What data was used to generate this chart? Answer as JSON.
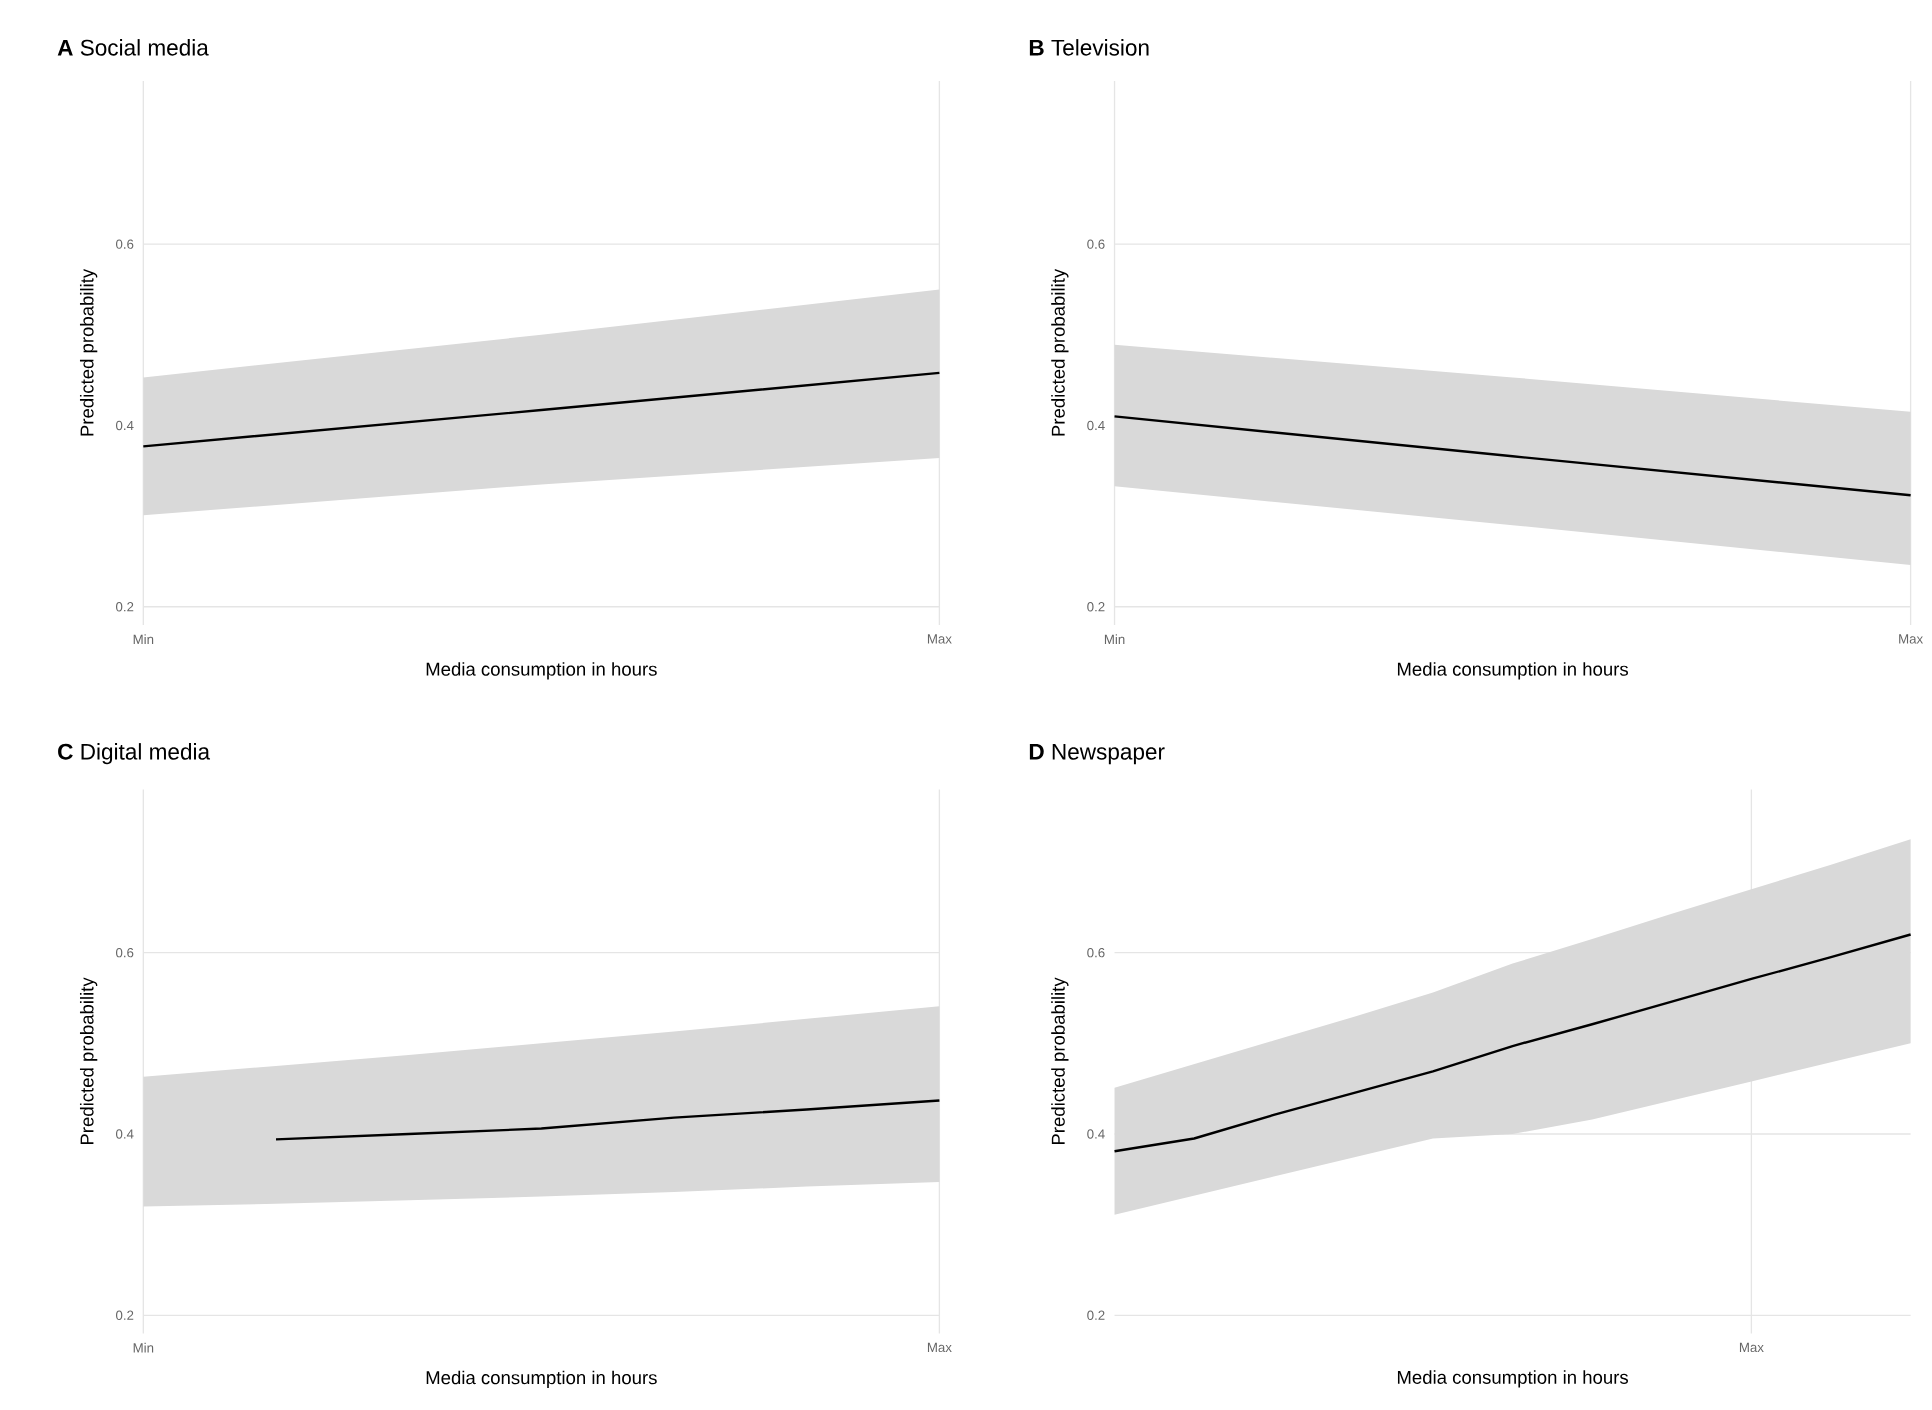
{
  "chart_data": [
    {
      "type": "line",
      "title": "**A** Social media",
      "xlabel": "Media consumption in hours",
      "ylabel": "Predicted probability",
      "ylim": [
        0.18,
        0.78
      ],
      "yticks": [
        0.2,
        0.4,
        0.6
      ],
      "grid": true,
      "categories": [
        "Min",
        null,
        "Max"
      ],
      "series": [
        {
          "color": "#000000",
          "values": [
            0.377,
            0.417,
            0.458
          ],
          "lower": [
            0.301,
            0.335,
            0.364
          ],
          "upper": [
            0.453,
            0.5,
            0.55
          ]
        }
      ]
    },
    {
      "type": "line",
      "title": "**B** Television",
      "xlabel": "Media consumption in hours",
      "ylabel": "Predicted probability",
      "ylim": [
        0.18,
        0.78
      ],
      "yticks": [
        0.2,
        0.4,
        0.6
      ],
      "grid": true,
      "categories": [
        "Min",
        null,
        "Max"
      ],
      "series": [
        {
          "color": "#000000",
          "values": [
            0.41,
            0.366,
            0.323
          ],
          "lower": [
            0.333,
            0.29,
            0.246
          ],
          "upper": [
            0.489,
            0.453,
            0.415
          ]
        }
      ]
    },
    {
      "type": "line",
      "title": "**C** Digital media",
      "xlabel": "Media consumption in hours",
      "ylabel": "Predicted probability",
      "ylim": [
        0.18,
        0.78
      ],
      "yticks": [
        0.2,
        0.4,
        0.6
      ],
      "grid": true,
      "categories": [
        "Min",
        null,
        null,
        null,
        null,
        null,
        "Max"
      ],
      "series": [
        {
          "color": "#000000",
          "values": [
            null,
            0.394,
            0.4,
            0.406,
            0.418,
            0.427,
            0.437
          ],
          "lower": [
            0.32,
            0.323,
            0.327,
            0.331,
            0.336,
            0.342,
            0.347
          ],
          "upper": [
            0.463,
            0.475,
            0.487,
            0.5,
            0.513,
            0.527,
            0.541
          ]
        }
      ]
    },
    {
      "type": "line",
      "title": "**D** Newspaper",
      "xlabel": "Media consumption in hours",
      "ylabel": "Predicted probability",
      "ylim": [
        0.18,
        0.78
      ],
      "yticks": [
        0.2,
        0.4,
        0.6
      ],
      "grid": true,
      "categories": [
        null,
        null,
        null,
        null,
        null,
        null,
        null,
        null,
        "Max",
        null,
        null
      ],
      "series": [
        {
          "color": "#000000",
          "values": [
            0.381,
            0.395,
            0.421,
            0.445,
            0.469,
            0.497,
            0.521,
            0.546,
            0.571,
            0.595,
            0.62
          ],
          "lower": [
            0.311,
            0.332,
            0.353,
            0.374,
            0.395,
            0.4,
            0.416,
            0.437,
            0.458,
            0.479,
            0.5
          ],
          "upper": [
            0.451,
            0.477,
            0.503,
            0.529,
            0.556,
            0.588,
            0.615,
            0.643,
            0.67,
            0.697,
            0.725
          ]
        }
      ]
    }
  ]
}
